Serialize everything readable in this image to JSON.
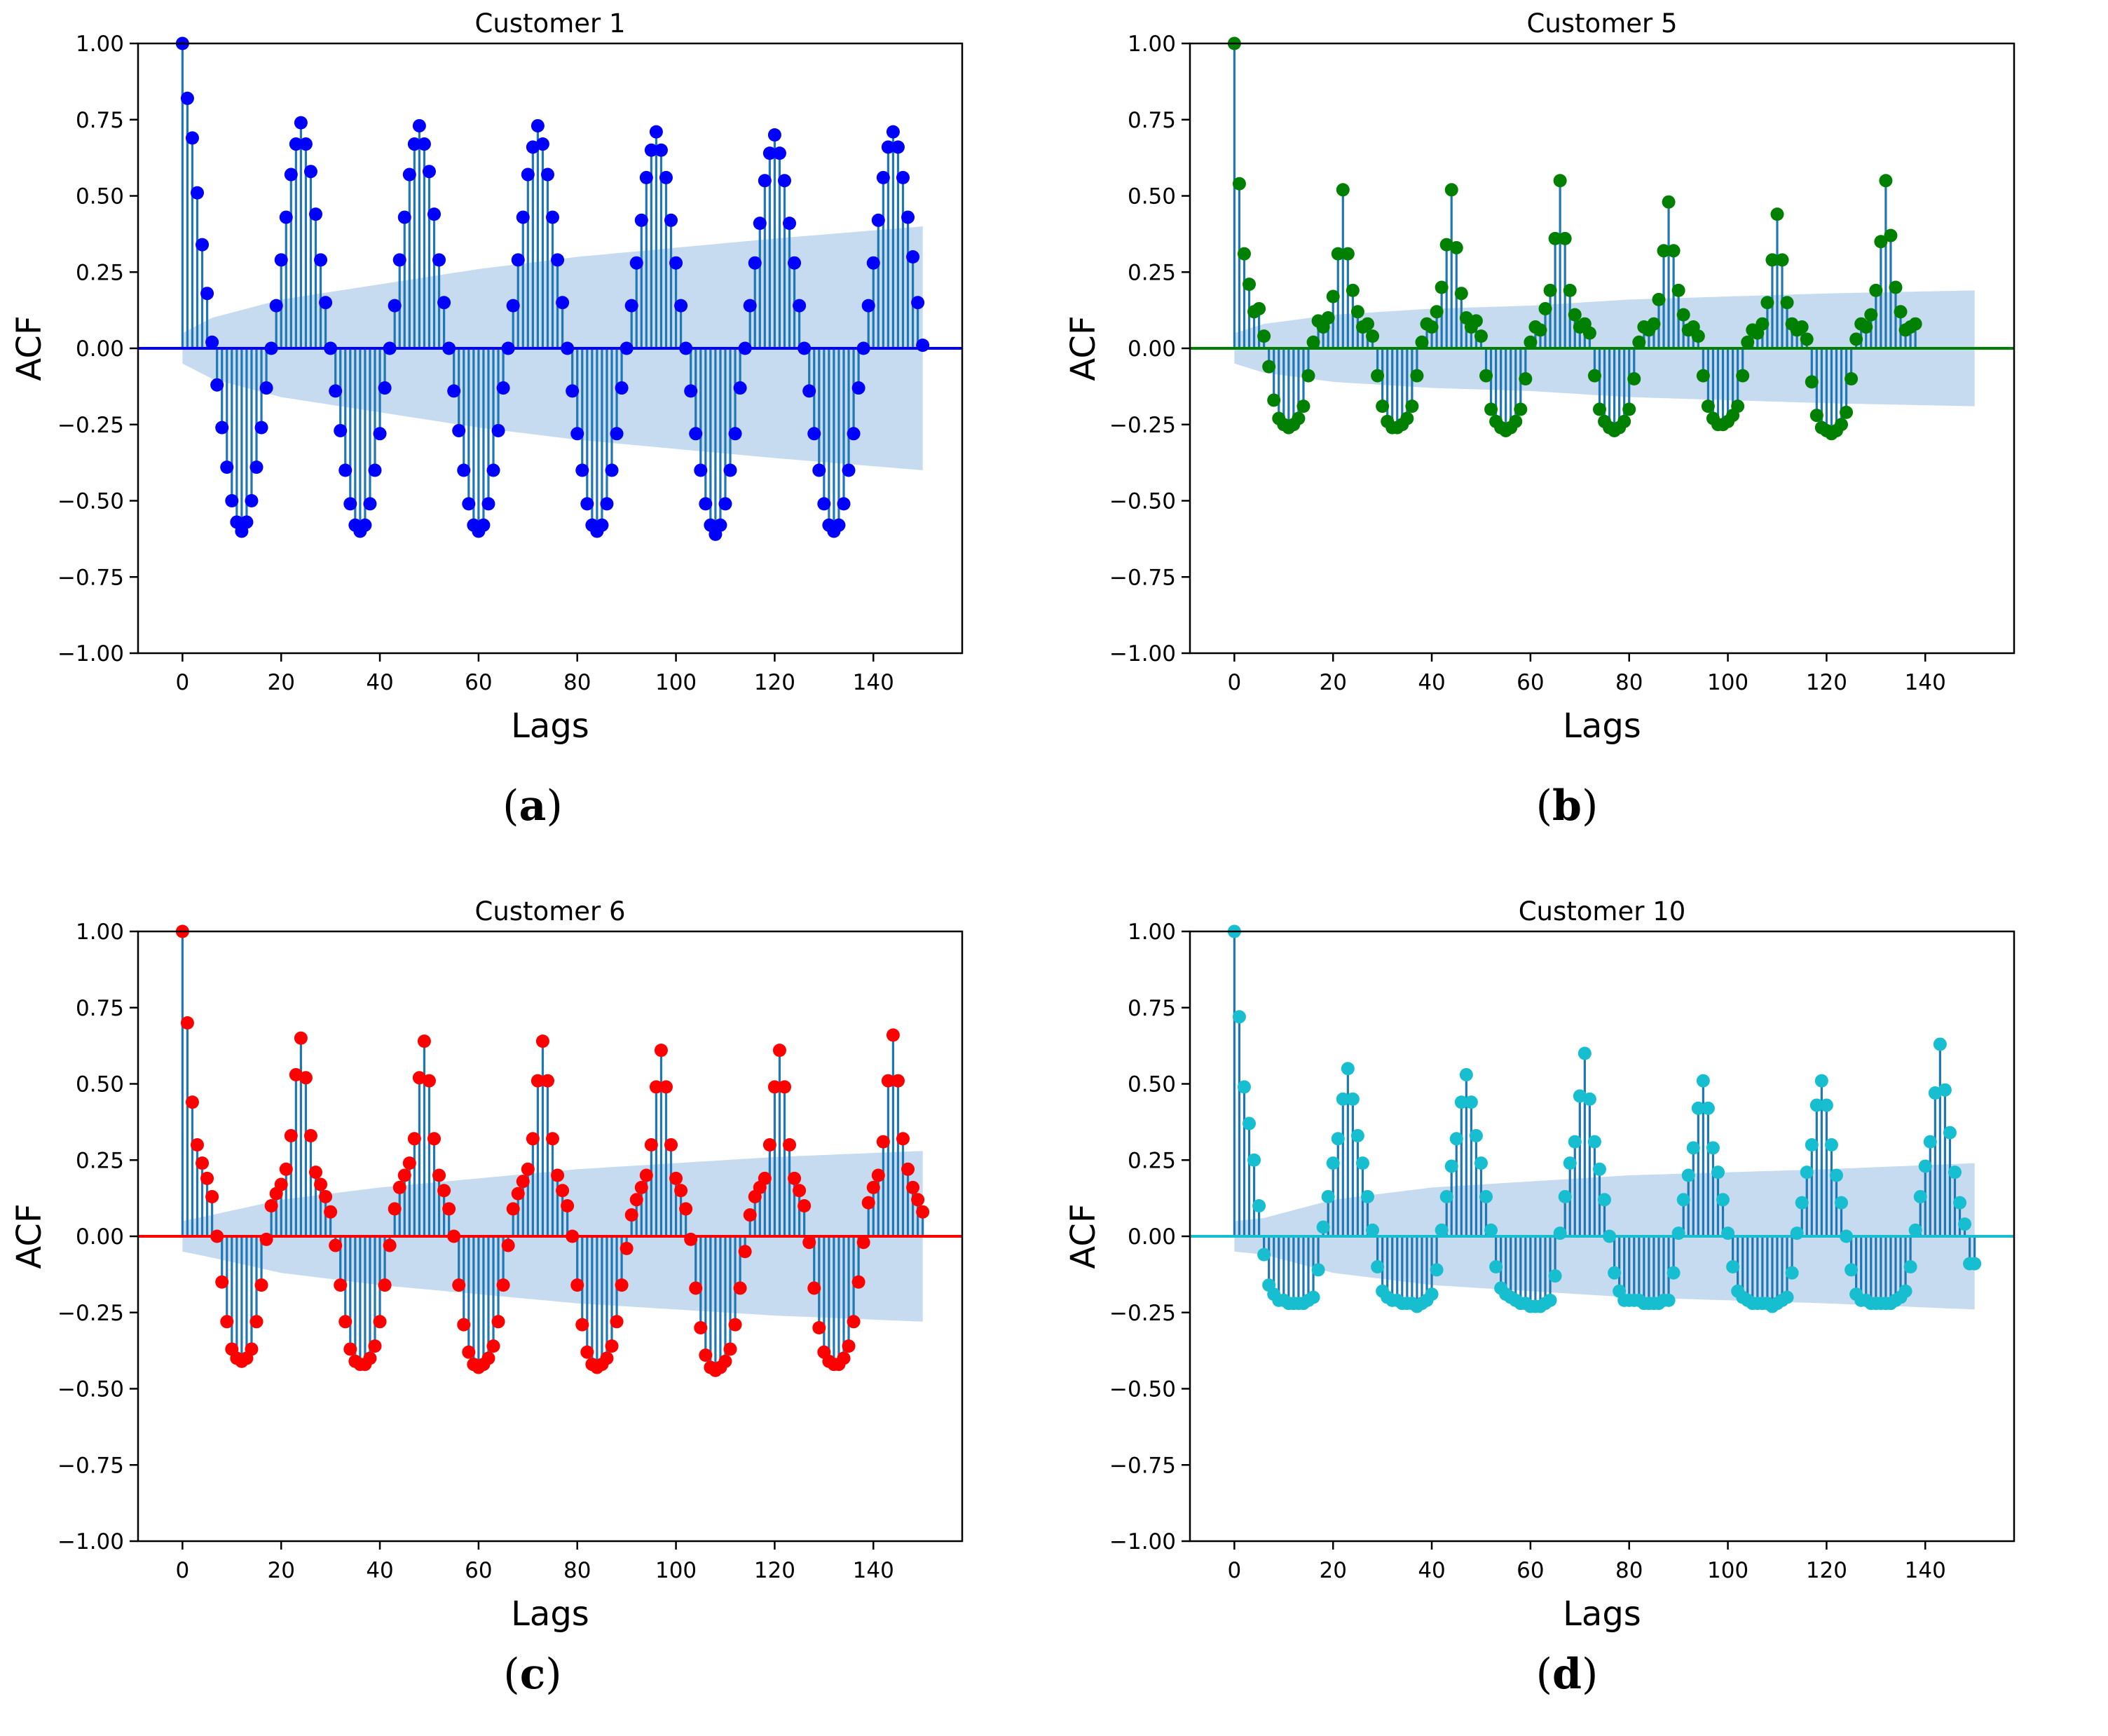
{
  "chart_data": [
    {
      "type": "stem",
      "title": "Customer 1",
      "caption": "a",
      "xlabel": "Lags",
      "ylabel": "ACF",
      "xlim": [
        -9,
        158
      ],
      "ylim": [
        -1.0,
        1.0
      ],
      "xticks": [
        "0",
        "20",
        "40",
        "60",
        "80",
        "100",
        "120",
        "140"
      ],
      "yticks": [
        "1.00",
        "0.75",
        "0.50",
        "0.25",
        "0.00",
        "−0.25",
        "−0.50",
        "−0.75",
        "−1.00"
      ],
      "color": "#0000ff",
      "stem_color": "#1f77b4",
      "band_color": "#c6dbef",
      "lag_max": 150,
      "acf": [
        1.0,
        0.82,
        0.69,
        0.51,
        0.34,
        0.18,
        0.02,
        -0.12,
        -0.26,
        -0.39,
        -0.5,
        -0.57,
        -0.6,
        -0.57,
        -0.5,
        -0.39,
        -0.26,
        -0.13,
        0.0,
        0.14,
        0.29,
        0.43,
        0.57,
        0.67,
        0.74,
        0.67,
        0.58,
        0.44,
        0.29,
        0.15,
        0.0,
        -0.14,
        -0.27,
        -0.4,
        -0.51,
        -0.58,
        -0.6,
        -0.58,
        -0.51,
        -0.4,
        -0.28,
        -0.13,
        0.0,
        0.14,
        0.29,
        0.43,
        0.57,
        0.67,
        0.73,
        0.67,
        0.58,
        0.44,
        0.29,
        0.15,
        0.0,
        -0.14,
        -0.27,
        -0.4,
        -0.51,
        -0.58,
        -0.6,
        -0.58,
        -0.51,
        -0.4,
        -0.27,
        -0.13,
        0.0,
        0.14,
        0.29,
        0.43,
        0.57,
        0.66,
        0.73,
        0.67,
        0.57,
        0.43,
        0.29,
        0.15,
        0.0,
        -0.14,
        -0.28,
        -0.4,
        -0.51,
        -0.58,
        -0.6,
        -0.58,
        -0.51,
        -0.4,
        -0.28,
        -0.13,
        0.0,
        0.14,
        0.28,
        0.42,
        0.56,
        0.65,
        0.71,
        0.65,
        0.56,
        0.42,
        0.28,
        0.14,
        0.0,
        -0.14,
        -0.28,
        -0.4,
        -0.51,
        -0.58,
        -0.61,
        -0.58,
        -0.51,
        -0.4,
        -0.28,
        -0.13,
        0.0,
        0.14,
        0.28,
        0.41,
        0.55,
        0.64,
        0.7,
        0.64,
        0.55,
        0.41,
        0.28,
        0.14,
        0.0,
        -0.14,
        -0.28,
        -0.4,
        -0.51,
        -0.58,
        -0.6,
        -0.58,
        -0.51,
        -0.4,
        -0.28,
        -0.13,
        0.0,
        0.14,
        0.28,
        0.42,
        0.56,
        0.66,
        0.71,
        0.66,
        0.56,
        0.43,
        0.3,
        0.15,
        0.01
      ],
      "confidence_band": {
        "x": [
          0,
          6,
          20,
          40,
          60,
          80,
          100,
          120,
          150
        ],
        "half_width": [
          0.05,
          0.1,
          0.16,
          0.21,
          0.26,
          0.3,
          0.33,
          0.36,
          0.4
        ]
      }
    },
    {
      "type": "stem",
      "title": "Customer 5",
      "caption": "b",
      "xlabel": "Lags",
      "ylabel": "ACF",
      "xlim": [
        -9,
        158
      ],
      "ylim": [
        -1.0,
        1.0
      ],
      "xticks": [
        "0",
        "20",
        "40",
        "60",
        "80",
        "100",
        "120",
        "140"
      ],
      "yticks": [
        "1.00",
        "0.75",
        "0.50",
        "0.25",
        "0.00",
        "−0.25",
        "−0.50",
        "−0.75",
        "−1.00"
      ],
      "color": "#008000",
      "stem_color": "#1f77b4",
      "band_color": "#c6dbef",
      "lag_max": 150,
      "acf": [
        1.0,
        0.54,
        0.31,
        0.21,
        0.12,
        0.13,
        0.04,
        -0.06,
        -0.17,
        -0.23,
        -0.25,
        -0.26,
        -0.25,
        -0.23,
        -0.19,
        -0.09,
        0.02,
        0.09,
        0.07,
        0.1,
        0.17,
        0.31,
        0.52,
        0.31,
        0.19,
        0.12,
        0.07,
        0.08,
        0.04,
        -0.09,
        -0.19,
        -0.24,
        -0.26,
        -0.26,
        -0.25,
        -0.23,
        -0.19,
        -0.09,
        0.02,
        0.08,
        0.07,
        0.12,
        0.2,
        0.34,
        0.52,
        0.33,
        0.18,
        0.1,
        0.07,
        0.09,
        0.04,
        -0.09,
        -0.2,
        -0.24,
        -0.26,
        -0.27,
        -0.26,
        -0.24,
        -0.2,
        -0.1,
        0.02,
        0.07,
        0.06,
        0.13,
        0.19,
        0.36,
        0.55,
        0.36,
        0.19,
        0.11,
        0.07,
        0.08,
        0.05,
        -0.09,
        -0.2,
        -0.24,
        -0.26,
        -0.27,
        -0.26,
        -0.24,
        -0.2,
        -0.1,
        0.02,
        0.07,
        0.06,
        0.08,
        0.16,
        0.32,
        0.48,
        0.32,
        0.19,
        0.11,
        0.06,
        0.07,
        0.04,
        -0.09,
        -0.19,
        -0.23,
        -0.25,
        -0.25,
        -0.24,
        -0.22,
        -0.19,
        -0.09,
        0.02,
        0.06,
        0.05,
        0.08,
        0.15,
        0.29,
        0.44,
        0.29,
        0.15,
        0.08,
        0.06,
        0.07,
        0.03,
        -0.11,
        -0.22,
        -0.26,
        -0.27,
        -0.28,
        -0.27,
        -0.25,
        -0.21,
        -0.1,
        0.03,
        0.08,
        0.07,
        0.11,
        0.19,
        0.35,
        0.55,
        0.37,
        0.2,
        0.12,
        0.06,
        0.07,
        0.08
      ],
      "confidence_band": {
        "x": [
          0,
          6,
          20,
          40,
          60,
          80,
          100,
          120,
          150
        ],
        "half_width": [
          0.05,
          0.08,
          0.11,
          0.13,
          0.14,
          0.16,
          0.17,
          0.18,
          0.19
        ]
      }
    },
    {
      "type": "stem",
      "title": "Customer 6",
      "caption": "c",
      "xlabel": "Lags",
      "ylabel": "ACF",
      "xlim": [
        -9,
        158
      ],
      "ylim": [
        -1.0,
        1.0
      ],
      "xticks": [
        "0",
        "20",
        "40",
        "60",
        "80",
        "100",
        "120",
        "140"
      ],
      "yticks": [
        "1.00",
        "0.75",
        "0.50",
        "0.25",
        "0.00",
        "−0.25",
        "−0.50",
        "−0.75",
        "−1.00"
      ],
      "color": "#ff0000",
      "stem_color": "#1f77b4",
      "band_color": "#c6dbef",
      "lag_max": 150,
      "acf": [
        1.0,
        0.7,
        0.44,
        0.3,
        0.24,
        0.19,
        0.13,
        0.0,
        -0.15,
        -0.28,
        -0.37,
        -0.4,
        -0.41,
        -0.4,
        -0.37,
        -0.28,
        -0.16,
        -0.01,
        0.1,
        0.14,
        0.17,
        0.22,
        0.33,
        0.53,
        0.65,
        0.52,
        0.33,
        0.21,
        0.17,
        0.13,
        0.08,
        -0.03,
        -0.16,
        -0.28,
        -0.37,
        -0.41,
        -0.42,
        -0.42,
        -0.4,
        -0.36,
        -0.28,
        -0.16,
        -0.03,
        0.09,
        0.16,
        0.2,
        0.24,
        0.32,
        0.52,
        0.64,
        0.51,
        0.32,
        0.2,
        0.15,
        0.09,
        0.0,
        -0.16,
        -0.29,
        -0.38,
        -0.42,
        -0.43,
        -0.42,
        -0.4,
        -0.36,
        -0.28,
        -0.16,
        -0.03,
        0.09,
        0.14,
        0.18,
        0.22,
        0.32,
        0.51,
        0.64,
        0.51,
        0.32,
        0.2,
        0.15,
        0.1,
        0.0,
        -0.16,
        -0.29,
        -0.38,
        -0.42,
        -0.43,
        -0.42,
        -0.4,
        -0.36,
        -0.28,
        -0.16,
        -0.04,
        0.07,
        0.12,
        0.16,
        0.2,
        0.3,
        0.49,
        0.61,
        0.49,
        0.3,
        0.19,
        0.15,
        0.09,
        -0.01,
        -0.17,
        -0.3,
        -0.39,
        -0.43,
        -0.44,
        -0.43,
        -0.41,
        -0.37,
        -0.29,
        -0.17,
        -0.05,
        0.07,
        0.13,
        0.16,
        0.19,
        0.3,
        0.49,
        0.61,
        0.49,
        0.3,
        0.19,
        0.15,
        0.1,
        -0.02,
        -0.17,
        -0.3,
        -0.38,
        -0.41,
        -0.42,
        -0.42,
        -0.4,
        -0.36,
        -0.28,
        -0.15,
        -0.02,
        0.11,
        0.16,
        0.2,
        0.31,
        0.51,
        0.66,
        0.51,
        0.32,
        0.22,
        0.16,
        0.12,
        0.08
      ],
      "confidence_band": {
        "x": [
          0,
          6,
          20,
          40,
          60,
          80,
          100,
          120,
          150
        ],
        "half_width": [
          0.05,
          0.07,
          0.12,
          0.16,
          0.19,
          0.22,
          0.24,
          0.26,
          0.28
        ]
      }
    },
    {
      "type": "stem",
      "title": "Customer 10",
      "caption": "d",
      "xlabel": "Lags",
      "ylabel": "ACF",
      "xlim": [
        -9,
        158
      ],
      "ylim": [
        -1.0,
        1.0
      ],
      "xticks": [
        "0",
        "20",
        "40",
        "60",
        "80",
        "100",
        "120",
        "140"
      ],
      "yticks": [
        "1.00",
        "0.75",
        "0.50",
        "0.25",
        "0.00",
        "−0.25",
        "−0.50",
        "−0.75",
        "−1.00"
      ],
      "color": "#17becf",
      "stem_color": "#1f77b4",
      "band_color": "#c6dbef",
      "lag_max": 150,
      "acf": [
        1.0,
        0.72,
        0.49,
        0.37,
        0.25,
        0.1,
        -0.06,
        -0.16,
        -0.19,
        -0.21,
        -0.21,
        -0.22,
        -0.22,
        -0.22,
        -0.22,
        -0.21,
        -0.2,
        -0.11,
        0.03,
        0.13,
        0.24,
        0.32,
        0.45,
        0.55,
        0.45,
        0.33,
        0.24,
        0.13,
        0.02,
        -0.1,
        -0.18,
        -0.2,
        -0.21,
        -0.21,
        -0.22,
        -0.22,
        -0.22,
        -0.23,
        -0.22,
        -0.21,
        -0.19,
        -0.11,
        0.02,
        0.13,
        0.23,
        0.32,
        0.44,
        0.53,
        0.44,
        0.33,
        0.24,
        0.13,
        0.02,
        -0.1,
        -0.17,
        -0.19,
        -0.2,
        -0.21,
        -0.22,
        -0.22,
        -0.23,
        -0.23,
        -0.23,
        -0.22,
        -0.21,
        -0.13,
        0.01,
        0.13,
        0.24,
        0.31,
        0.46,
        0.6,
        0.45,
        0.31,
        0.22,
        0.12,
        0.0,
        -0.12,
        -0.18,
        -0.21,
        -0.21,
        -0.21,
        -0.21,
        -0.22,
        -0.22,
        -0.22,
        -0.22,
        -0.21,
        -0.21,
        -0.12,
        0.01,
        0.12,
        0.2,
        0.29,
        0.42,
        0.51,
        0.42,
        0.29,
        0.21,
        0.12,
        0.01,
        -0.1,
        -0.18,
        -0.2,
        -0.21,
        -0.22,
        -0.22,
        -0.22,
        -0.22,
        -0.23,
        -0.22,
        -0.21,
        -0.2,
        -0.12,
        0.01,
        0.11,
        0.21,
        0.3,
        0.43,
        0.51,
        0.43,
        0.3,
        0.2,
        0.11,
        0.0,
        -0.11,
        -0.19,
        -0.21,
        -0.21,
        -0.22,
        -0.22,
        -0.22,
        -0.22,
        -0.22,
        -0.21,
        -0.2,
        -0.18,
        -0.1,
        0.02,
        0.13,
        0.23,
        0.31,
        0.47,
        0.63,
        0.48,
        0.34,
        0.21,
        0.11,
        0.04,
        -0.09,
        -0.09
      ],
      "confidence_band": {
        "x": [
          0,
          6,
          20,
          40,
          60,
          80,
          100,
          120,
          150
        ],
        "half_width": [
          0.05,
          0.06,
          0.12,
          0.16,
          0.18,
          0.2,
          0.21,
          0.22,
          0.24
        ]
      }
    }
  ]
}
